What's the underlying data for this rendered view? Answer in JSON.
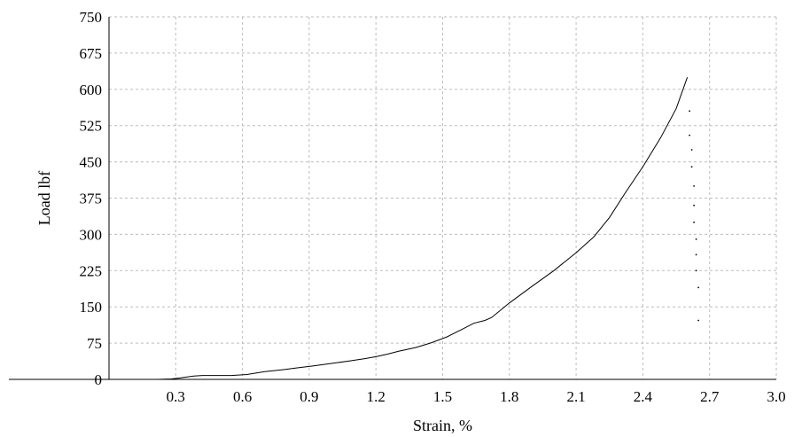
{
  "chart_data": {
    "type": "line",
    "title": "",
    "xlabel": "Strain, %",
    "ylabel": "Load lbf",
    "xlim": [
      0.0,
      3.0
    ],
    "ylim": [
      0,
      750
    ],
    "x_ticks": [
      "0.3",
      "0.6",
      "0.9",
      "1.2",
      "1.5",
      "1.8",
      "2.1",
      "2.4",
      "2.7",
      "3.0"
    ],
    "y_ticks": [
      "0",
      "75",
      "150",
      "225",
      "300",
      "375",
      "450",
      "525",
      "600",
      "675",
      "750"
    ],
    "grid": true,
    "legend": "none",
    "series": [
      {
        "x": [
          0.22,
          0.28,
          0.32,
          0.38,
          0.42,
          0.48,
          0.55,
          0.62,
          0.7,
          0.78,
          0.85,
          0.92,
          1.0,
          1.08,
          1.15,
          1.2,
          1.25,
          1.3,
          1.38,
          1.45,
          1.52,
          1.58,
          1.64,
          1.69,
          1.72,
          1.8,
          1.9,
          2.0,
          2.1,
          2.18,
          2.25,
          2.32,
          2.4,
          2.48,
          2.55,
          2.6
        ],
        "y": [
          0,
          1,
          3,
          7,
          8,
          8,
          8,
          10,
          16,
          20,
          24,
          28,
          33,
          38,
          43,
          47,
          52,
          58,
          66,
          76,
          88,
          102,
          116,
          122,
          128,
          158,
          192,
          225,
          262,
          295,
          335,
          385,
          440,
          500,
          560,
          625
        ]
      },
      {
        "x": [
          2.61,
          2.61,
          2.62,
          2.62,
          2.63,
          2.63,
          2.63,
          2.64,
          2.64,
          2.64,
          2.65,
          2.65
        ],
        "y": [
          555,
          505,
          475,
          440,
          400,
          360,
          325,
          290,
          258,
          225,
          190,
          122
        ]
      }
    ]
  }
}
